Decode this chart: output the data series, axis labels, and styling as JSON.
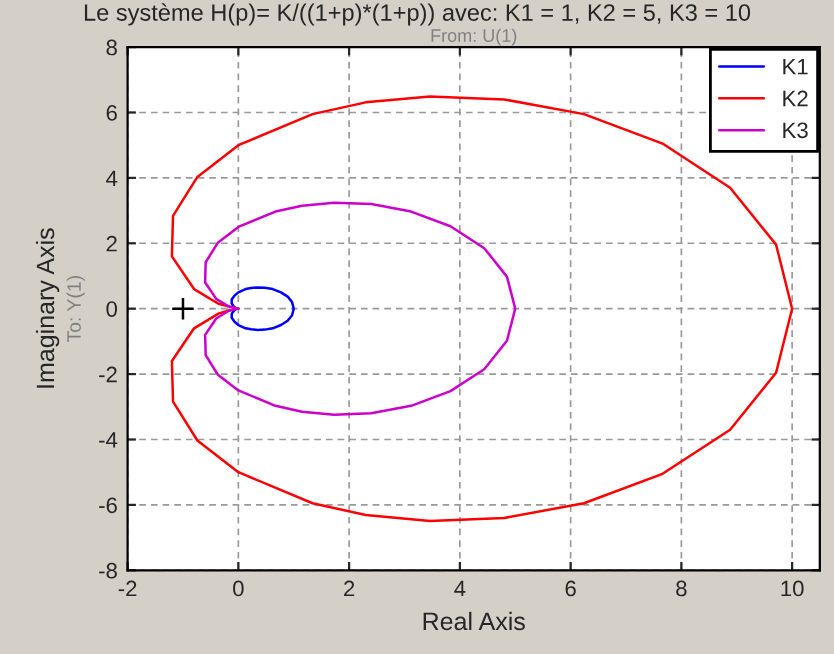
{
  "chart_data": {
    "type": "line",
    "title": "Le système H(p)= K/((1+p)*(1+p)) avec: K1 = 1, K2 = 5, K3 = 10",
    "xlabel": "Real Axis",
    "ylabel": "Imaginary Axis",
    "annotations": [
      "From: U(1)",
      "To: Y(1)"
    ],
    "series": [
      {
        "name": "K1",
        "color": "#0000ff",
        "x": [
          0,
          -0.04,
          -0.08,
          -0.12,
          -0.12,
          -0.07,
          0,
          0.13,
          0.23,
          0.35,
          0.48,
          0.62,
          0.77,
          0.89,
          0.97,
          1,
          0.97,
          0.89,
          0.77,
          0.62,
          0.48,
          0.35,
          0.23,
          0.13,
          0,
          -0.07,
          -0.12,
          -0.12,
          -0.08,
          -0.04
        ],
        "values": [
          0,
          0.01,
          0.06,
          0.16,
          0.28,
          0.4,
          0.5,
          0.6,
          0.63,
          0.65,
          0.64,
          0.6,
          0.5,
          0.37,
          0.2,
          0,
          -0.2,
          -0.37,
          -0.5,
          -0.6,
          -0.64,
          -0.65,
          -0.63,
          -0.6,
          -0.5,
          -0.4,
          -0.28,
          -0.16,
          -0.06,
          -0.01
        ]
      },
      {
        "name": "K2",
        "color": "#ff0000",
        "x": [
          0,
          -0.36,
          -0.8,
          -1.2,
          -1.18,
          -0.74,
          0,
          1.34,
          2.3,
          3.46,
          4.8,
          6.24,
          7.66,
          8.88,
          9.71,
          10,
          9.71,
          8.88,
          7.66,
          6.24,
          4.8,
          3.46,
          2.3,
          1.34,
          0,
          -0.74,
          -1.18,
          -1.2,
          -0.8,
          -0.36,
          -0.15
        ],
        "values": [
          0,
          0.15,
          0.6,
          1.6,
          2.84,
          4.03,
          5,
          5.95,
          6.31,
          6.49,
          6.4,
          5.95,
          5.05,
          3.7,
          1.96,
          0,
          -1.96,
          -3.7,
          -5.05,
          -5.95,
          -6.4,
          -6.49,
          -6.31,
          -5.95,
          -5,
          -4.03,
          -2.84,
          -1.6,
          -0.6,
          -0.15,
          -0.04
        ]
      },
      {
        "name": "K3",
        "color": "#cc00cc",
        "x": [
          0,
          -0.18,
          -0.4,
          -0.6,
          -0.59,
          -0.37,
          0,
          0.67,
          1.15,
          1.73,
          2.4,
          3.12,
          3.83,
          4.44,
          4.85,
          5,
          4.85,
          4.44,
          3.83,
          3.12,
          2.4,
          1.73,
          1.15,
          0.67,
          0,
          -0.37,
          -0.59,
          -0.6,
          -0.4,
          -0.18,
          -0.07
        ],
        "values": [
          0,
          0.07,
          0.3,
          0.8,
          1.42,
          2.02,
          2.5,
          2.97,
          3.15,
          3.24,
          3.2,
          2.97,
          2.52,
          1.85,
          0.98,
          0,
          -0.98,
          -1.85,
          -2.52,
          -2.97,
          -3.2,
          -3.24,
          -3.15,
          -2.97,
          -2.5,
          -2.02,
          -1.42,
          -0.8,
          -0.3,
          -0.07,
          -0.02
        ]
      },
      {
        "type": "scatter",
        "marker": "cross",
        "color": "#000000",
        "x": [
          -1
        ],
        "values": [
          0
        ]
      }
    ],
    "xlim": [
      -2,
      10.5
    ],
    "xticks": [
      -2,
      0,
      2,
      4,
      6,
      8,
      10
    ],
    "ylim": [
      -8,
      8
    ],
    "yticks": [
      -8,
      -6,
      -4,
      -2,
      0,
      2,
      4,
      6,
      8
    ],
    "grid": true,
    "legend": "top right"
  }
}
